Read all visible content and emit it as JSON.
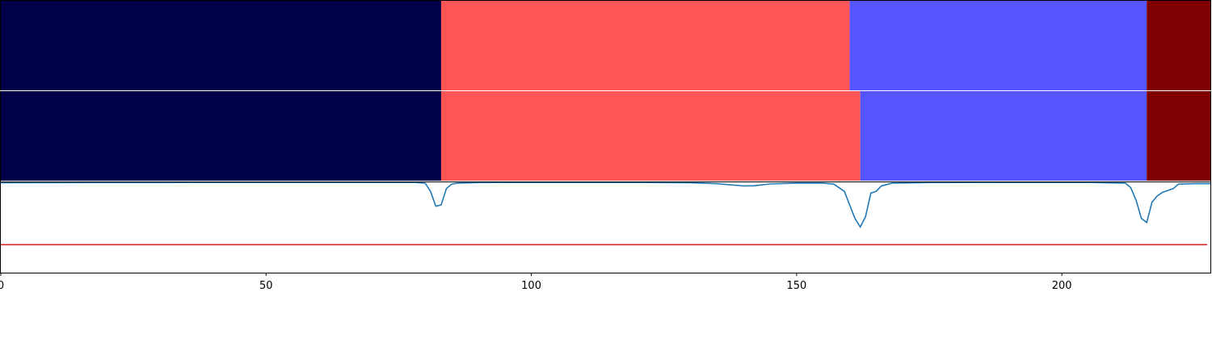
{
  "chart_data": {
    "type": "area",
    "x_range": [
      0,
      228
    ],
    "x_ticks": [
      0,
      50,
      100,
      150,
      200
    ],
    "x_tick_labels": [
      "0",
      "50",
      "100",
      "150",
      "200"
    ],
    "segment_rows": [
      {
        "segments": [
          {
            "start": 0,
            "end": 83,
            "color": "#000048"
          },
          {
            "start": 83,
            "end": 160,
            "color": "#ff5555"
          },
          {
            "start": 160,
            "end": 216,
            "color": "#5555ff"
          },
          {
            "start": 216,
            "end": 228,
            "color": "#7f0000"
          }
        ]
      },
      {
        "segments": [
          {
            "start": 0,
            "end": 83,
            "color": "#000048"
          },
          {
            "start": 83,
            "end": 162,
            "color": "#ff5555"
          },
          {
            "start": 162,
            "end": 216,
            "color": "#5555ff"
          },
          {
            "start": 216,
            "end": 228,
            "color": "#7f0000"
          }
        ]
      }
    ],
    "signal": {
      "color": "#1f77b4",
      "y_range": [
        0,
        1
      ],
      "points": [
        [
          0,
          0.995
        ],
        [
          10,
          0.996
        ],
        [
          20,
          0.997
        ],
        [
          30,
          0.997
        ],
        [
          40,
          0.998
        ],
        [
          50,
          0.998
        ],
        [
          60,
          0.998
        ],
        [
          70,
          0.998
        ],
        [
          78,
          0.998
        ],
        [
          80,
          0.99
        ],
        [
          81,
          0.9
        ],
        [
          82,
          0.735
        ],
        [
          83,
          0.75
        ],
        [
          84,
          0.93
        ],
        [
          85,
          0.98
        ],
        [
          86,
          0.99
        ],
        [
          90,
          0.997
        ],
        [
          100,
          0.998
        ],
        [
          110,
          0.998
        ],
        [
          120,
          0.998
        ],
        [
          130,
          0.995
        ],
        [
          135,
          0.985
        ],
        [
          140,
          0.96
        ],
        [
          142,
          0.962
        ],
        [
          145,
          0.982
        ],
        [
          150,
          0.99
        ],
        [
          155,
          0.99
        ],
        [
          157,
          0.98
        ],
        [
          159,
          0.9
        ],
        [
          160,
          0.75
        ],
        [
          161,
          0.6
        ],
        [
          162,
          0.505
        ],
        [
          163,
          0.62
        ],
        [
          164,
          0.88
        ],
        [
          165,
          0.9
        ],
        [
          166,
          0.96
        ],
        [
          168,
          0.99
        ],
        [
          175,
          0.997
        ],
        [
          190,
          0.998
        ],
        [
          205,
          0.998
        ],
        [
          212,
          0.99
        ],
        [
          213,
          0.94
        ],
        [
          214,
          0.8
        ],
        [
          215,
          0.6
        ],
        [
          216,
          0.555
        ],
        [
          217,
          0.78
        ],
        [
          218,
          0.85
        ],
        [
          219,
          0.89
        ],
        [
          220,
          0.91
        ],
        [
          221,
          0.93
        ],
        [
          222,
          0.98
        ],
        [
          225,
          0.985
        ],
        [
          228,
          0.985
        ]
      ]
    },
    "threshold": {
      "value": 0.31,
      "color": "#d62728"
    },
    "grid": false,
    "title": "",
    "xlabel": "",
    "ylabel": ""
  }
}
